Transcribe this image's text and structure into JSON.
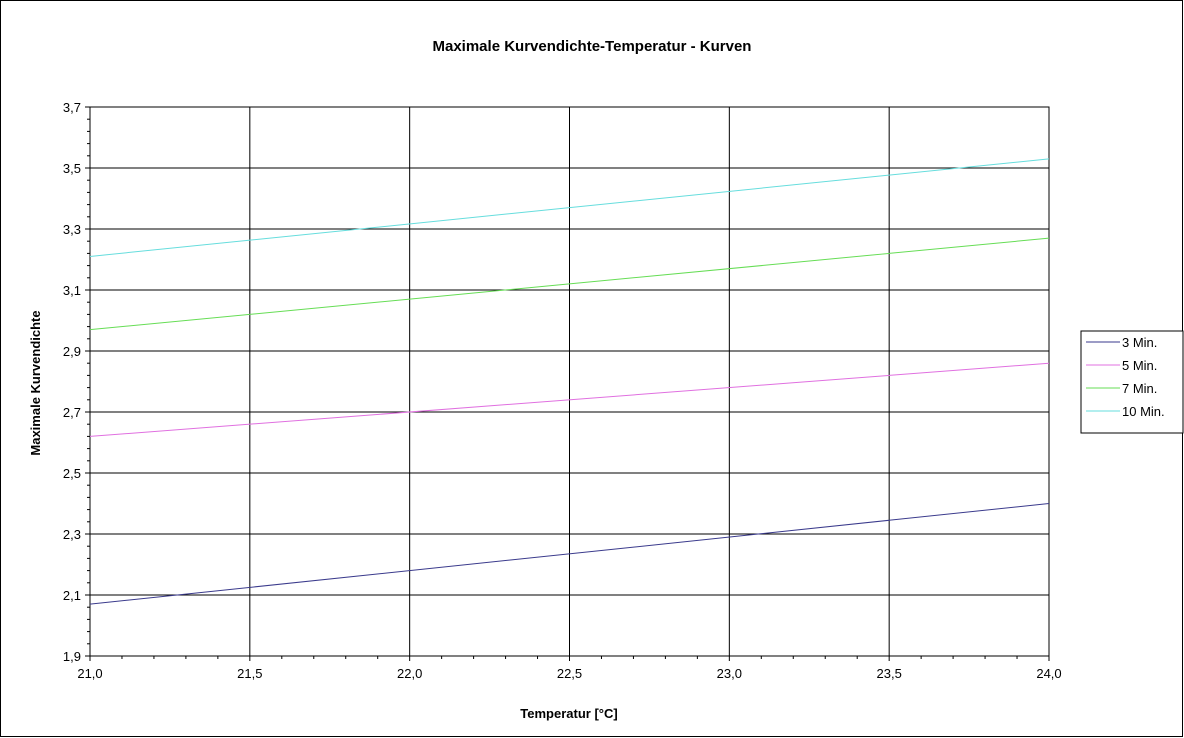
{
  "chart_data": {
    "type": "line",
    "title": "Maximale Kurvendichte-Temperatur - Kurven",
    "xlabel": "Temperatur [°C]",
    "ylabel": "Maximale Kurvendichte",
    "xlim": [
      21.0,
      24.0
    ],
    "ylim": [
      1.9,
      3.7
    ],
    "x_ticks": [
      "21,0",
      "21,5",
      "22,0",
      "22,5",
      "23,0",
      "23,5",
      "24,0"
    ],
    "y_ticks": [
      "1,9",
      "2,1",
      "2,3",
      "2,5",
      "2,7",
      "2,9",
      "3,1",
      "3,3",
      "3,5",
      "3,7"
    ],
    "grid": true,
    "legend_position": "right",
    "series": [
      {
        "name": "3 Min.",
        "color": "#3a3a8c",
        "x": [
          21.0,
          24.0
        ],
        "y": [
          2.07,
          2.4
        ]
      },
      {
        "name": "5 Min.",
        "color": "#e070e0",
        "x": [
          21.0,
          24.0
        ],
        "y": [
          2.62,
          2.86
        ]
      },
      {
        "name": "7 Min.",
        "color": "#66dd55",
        "x": [
          21.0,
          24.0
        ],
        "y": [
          2.97,
          3.27
        ]
      },
      {
        "name": "10 Min.",
        "color": "#66dddd",
        "x": [
          21.0,
          24.0
        ],
        "y": [
          3.21,
          3.53
        ]
      }
    ]
  }
}
